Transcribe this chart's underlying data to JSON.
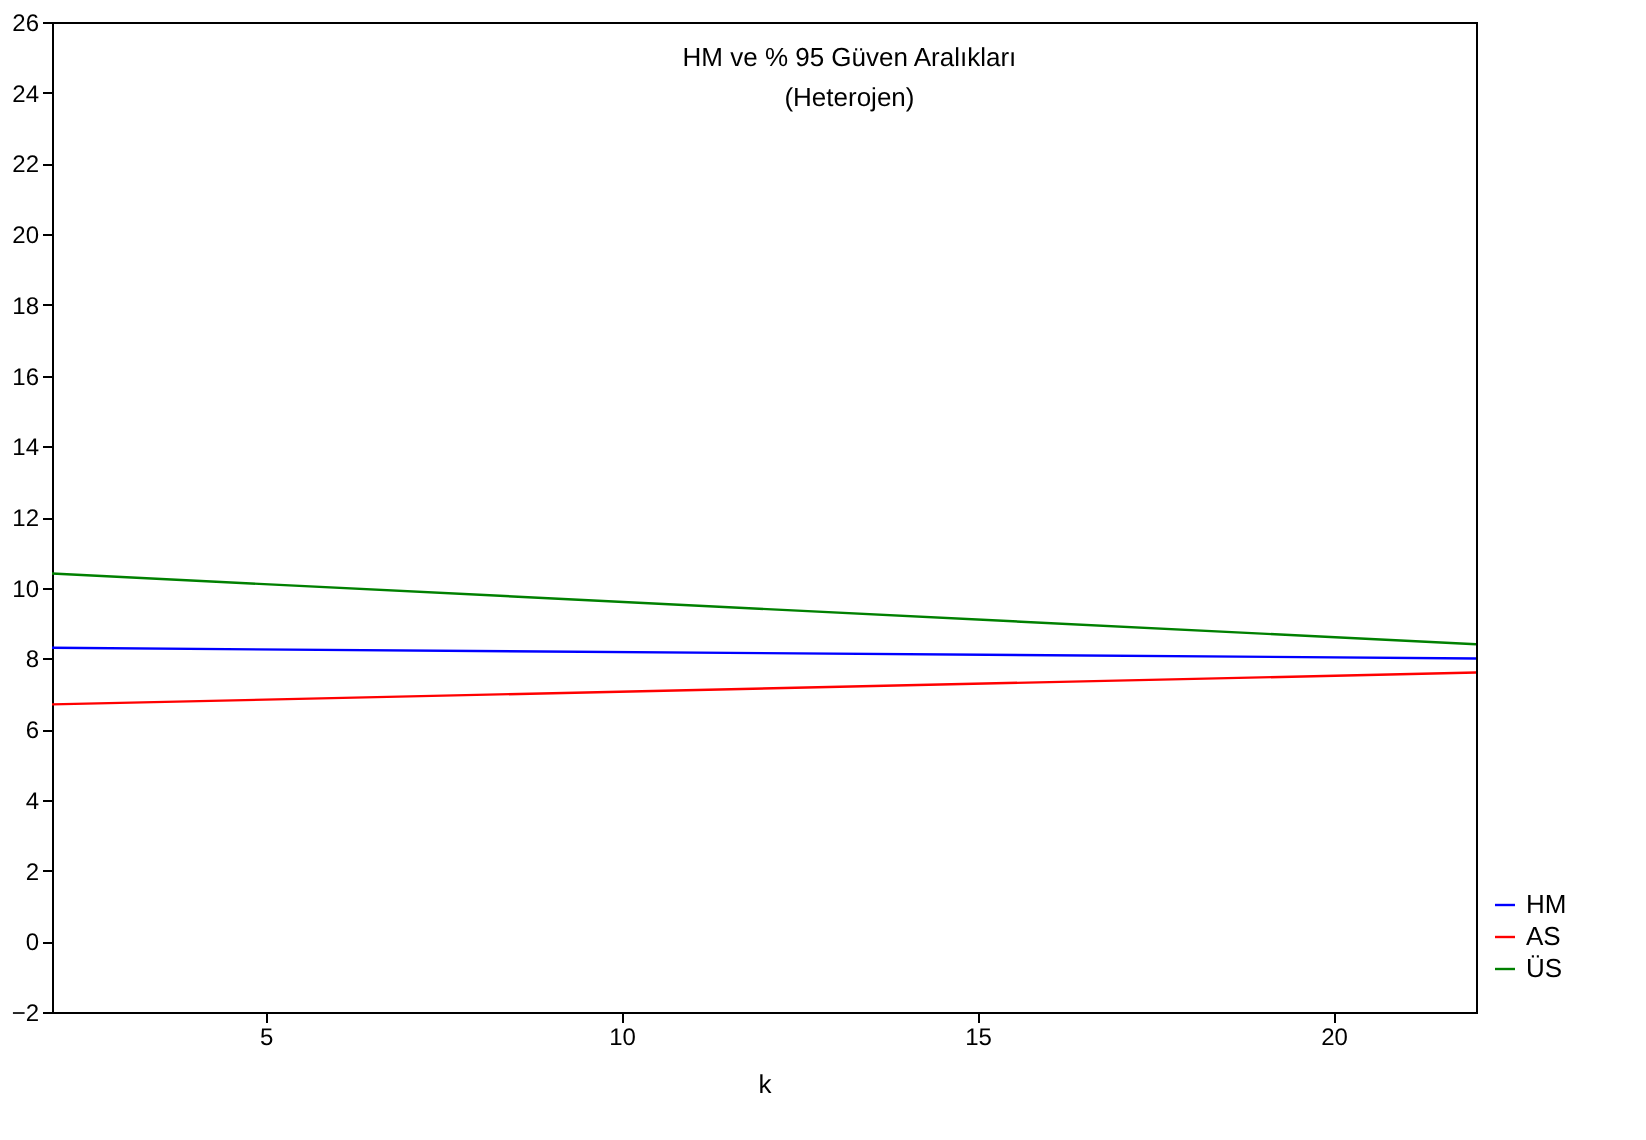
{
  "chart_data": {
    "type": "line",
    "title": "HM ve % 95 Güven Aralıkları",
    "subtitle": "(Heterojen)",
    "xlabel": "k",
    "x": [
      2,
      22
    ],
    "series": [
      {
        "name": "HM",
        "color": "#0000ff",
        "values": [
          8.3,
          8.0
        ]
      },
      {
        "name": "AS",
        "color": "#ff0000",
        "values": [
          6.7,
          7.6
        ]
      },
      {
        "name": "ÜS",
        "color": "#008000",
        "values": [
          10.4,
          8.4
        ]
      }
    ],
    "xlim": [
      2,
      22
    ],
    "xticks": [
      5,
      10,
      15,
      20
    ],
    "ylim": [
      -2,
      26
    ],
    "yticks": [
      -2,
      0,
      2,
      4,
      6,
      8,
      10,
      12,
      14,
      16,
      18,
      20,
      22,
      24,
      26
    ],
    "grid": false,
    "legend": "bottom right",
    "marker": "none",
    "line_style": "solid"
  }
}
